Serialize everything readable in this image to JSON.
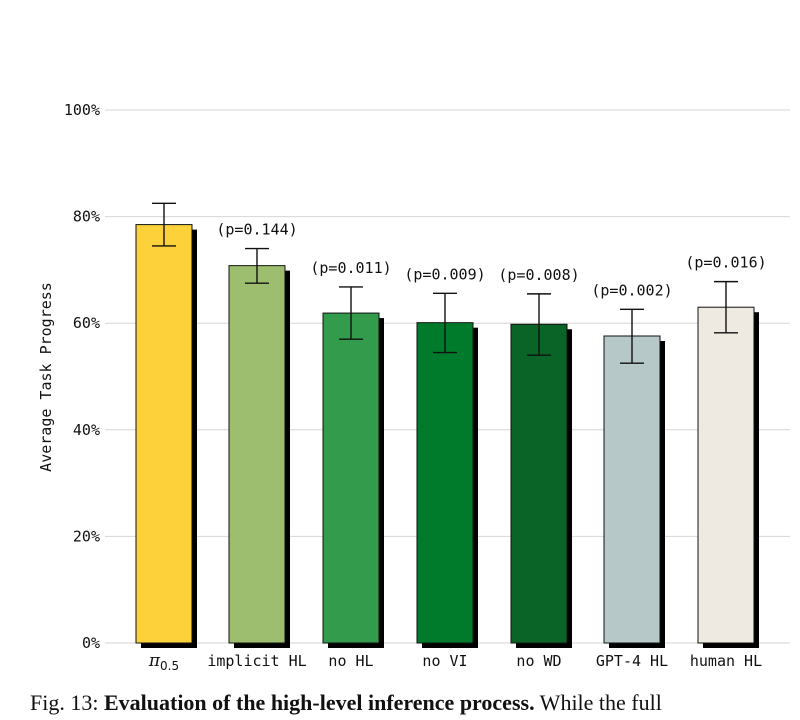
{
  "chart_data": {
    "type": "bar",
    "title": "",
    "xlabel": "",
    "ylabel": "Average Task Progress",
    "ylim": [
      0,
      100
    ],
    "yticks": [
      "0%",
      "20%",
      "40%",
      "60%",
      "80%",
      "100%"
    ],
    "ytick_values": [
      0,
      20,
      40,
      60,
      80,
      100
    ],
    "grid": true,
    "categories": [
      "π0.5",
      "implicit HL",
      "no HL",
      "no VI",
      "no WD",
      "GPT-4 HL",
      "human HL"
    ],
    "category_base": [
      "π",
      "",
      "",
      "",
      "",
      "",
      ""
    ],
    "category_sub": [
      "0.5",
      "",
      "",
      "",
      "",
      "",
      ""
    ],
    "values": [
      78.5,
      70.8,
      61.9,
      60.1,
      59.8,
      57.6,
      63.0
    ],
    "error_low": [
      74.5,
      67.5,
      57.0,
      54.5,
      54.0,
      52.5,
      58.2
    ],
    "error_high": [
      82.5,
      74.0,
      66.8,
      65.6,
      65.5,
      62.6,
      67.8
    ],
    "p_labels": [
      "",
      "(p=0.144)",
      "(p=0.011)",
      "(p=0.009)",
      "(p=0.008)",
      "(p=0.002)",
      "(p=0.016)"
    ],
    "colors": [
      "#FDD13A",
      "#9DBE6E",
      "#329B4C",
      "#007A2B",
      "#0A6427",
      "#B6C8C8",
      "#EEEAE1"
    ]
  },
  "caption": {
    "prefix": "Fig. 13: ",
    "bold": "Evaluation of the high-level inference process.",
    "rest": " While the full"
  }
}
